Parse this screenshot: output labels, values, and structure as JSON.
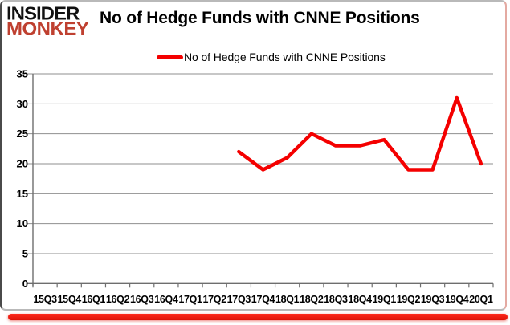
{
  "brand": {
    "line1": "INSIDER",
    "line2": "MONKEY"
  },
  "header": {
    "title": "No of Hedge Funds with CNNE Positions"
  },
  "legend": {
    "label": "No of Hedge Funds with CNNE Positions"
  },
  "colors": {
    "series": "#f40000",
    "brand_red": "#bf4030",
    "grid": "#8f8f8f",
    "axis": "#6e6e6e",
    "tick_text": "#000000",
    "bottom_bar": "#ed1c16"
  },
  "chart_data": {
    "type": "line",
    "title": "No of Hedge Funds with CNNE Positions",
    "categories": [
      "15Q3",
      "15Q4",
      "16Q1",
      "16Q2",
      "16Q3",
      "16Q4",
      "17Q1",
      "17Q2",
      "17Q3",
      "17Q4",
      "18Q1",
      "18Q2",
      "18Q3",
      "18Q4",
      "19Q1",
      "19Q2",
      "19Q3",
      "19Q4",
      "20Q1"
    ],
    "series": [
      {
        "name": "No of Hedge Funds with CNNE Positions",
        "color": "#f40000",
        "values": [
          null,
          null,
          null,
          null,
          null,
          null,
          null,
          null,
          22,
          19,
          21,
          25,
          23,
          23,
          24,
          19,
          19,
          31,
          20
        ]
      }
    ],
    "xlabel": "",
    "ylabel": "",
    "ylim": [
      0,
      35
    ],
    "ytick_step": 5,
    "grid": true,
    "legend_position": "top-center"
  }
}
